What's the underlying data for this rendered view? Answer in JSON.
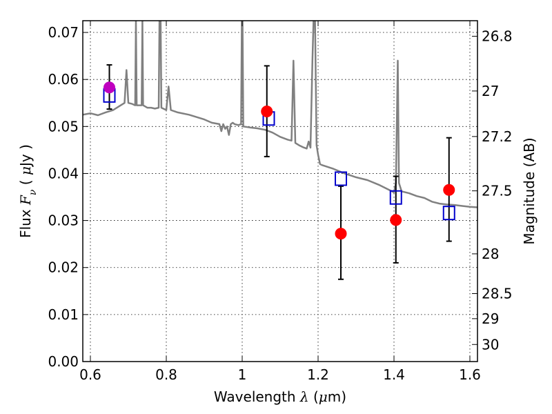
{
  "chart_data": {
    "type": "scatter",
    "xlabel": "Wavelength  λ (μm)",
    "ylabel": "Flux  F_ν  ( μJy )",
    "ylabel_right": "Magnitude (AB)",
    "xlim": [
      0.58,
      1.62
    ],
    "ylim": [
      0.0,
      0.0725
    ],
    "grid": true,
    "x_ticks": [
      0.6,
      0.8,
      1.0,
      1.2,
      1.4,
      1.6
    ],
    "x_tick_labels": [
      "0.6",
      "0.8",
      "1",
      "1.2",
      "1.4",
      "1.6"
    ],
    "y_ticks": [
      0.0,
      0.01,
      0.02,
      0.03,
      0.04,
      0.05,
      0.06,
      0.07
    ],
    "y_tick_labels": [
      "0.00",
      "0.01",
      "0.02",
      "0.03",
      "0.04",
      "0.05",
      "0.06",
      "0.07"
    ],
    "right_ticks": [
      {
        "label": "26.8",
        "mag": 26.8
      },
      {
        "label": "27",
        "mag": 27.0
      },
      {
        "label": "27.2",
        "mag": 27.2
      },
      {
        "label": "27.5",
        "mag": 27.5
      },
      {
        "label": "28",
        "mag": 28.0
      },
      {
        "label": "28.5",
        "mag": 28.5
      },
      {
        "label": "29",
        "mag": 29.0
      },
      {
        "label": "30",
        "mag": 30.0
      }
    ],
    "colors": {
      "observed": "#ff0000",
      "observed_first": "#bf00bf",
      "model": "#0000cc",
      "spectrum": "#808080",
      "errorbar": "#000000"
    },
    "series": [
      {
        "kind": "observed_flux",
        "x": [
          0.65,
          1.065,
          1.26,
          1.405,
          1.545
        ],
        "y": [
          0.0583,
          0.0532,
          0.0272,
          0.0301,
          0.0365
        ],
        "yerr_low": [
          0.0537,
          0.0436,
          0.0175,
          0.021,
          0.0256
        ],
        "yerr_high": [
          0.0631,
          0.0629,
          0.0373,
          0.0394,
          0.0476
        ]
      },
      {
        "kind": "model_photometry",
        "x": [
          0.65,
          1.07,
          1.26,
          1.405,
          1.545
        ],
        "y": [
          0.0566,
          0.0517,
          0.0389,
          0.0349,
          0.0316
        ]
      },
      {
        "kind": "model_spectrum",
        "points": [
          [
            0.58,
            0.0525
          ],
          [
            0.6,
            0.0528
          ],
          [
            0.62,
            0.0524
          ],
          [
            0.64,
            0.053
          ],
          [
            0.66,
            0.0535
          ],
          [
            0.68,
            0.0545
          ],
          [
            0.69,
            0.055
          ],
          [
            0.695,
            0.062
          ],
          [
            0.7,
            0.055
          ],
          [
            0.71,
            0.0548
          ],
          [
            0.718,
            0.0545
          ],
          [
            0.72,
            0.0725
          ],
          [
            0.722,
            0.0545
          ],
          [
            0.735,
            0.0545
          ],
          [
            0.737,
            0.0725
          ],
          [
            0.739,
            0.0545
          ],
          [
            0.75,
            0.054
          ],
          [
            0.76,
            0.054
          ],
          [
            0.77,
            0.0538
          ],
          [
            0.78,
            0.054
          ],
          [
            0.782,
            0.0725
          ],
          [
            0.785,
            0.0725
          ],
          [
            0.787,
            0.054
          ],
          [
            0.8,
            0.0535
          ],
          [
            0.806,
            0.0585
          ],
          [
            0.812,
            0.0535
          ],
          [
            0.83,
            0.053
          ],
          [
            0.86,
            0.0525
          ],
          [
            0.88,
            0.052
          ],
          [
            0.9,
            0.0515
          ],
          [
            0.92,
            0.0508
          ],
          [
            0.94,
            0.0505
          ],
          [
            0.945,
            0.049
          ],
          [
            0.95,
            0.0505
          ],
          [
            0.955,
            0.0495
          ],
          [
            0.96,
            0.05
          ],
          [
            0.965,
            0.0482
          ],
          [
            0.97,
            0.0505
          ],
          [
            0.975,
            0.0508
          ],
          [
            0.98,
            0.0505
          ],
          [
            0.99,
            0.0503
          ],
          [
            0.997,
            0.0505
          ],
          [
            0.999,
            0.0725
          ],
          [
            1.001,
            0.0725
          ],
          [
            1.003,
            0.05
          ],
          [
            1.02,
            0.0498
          ],
          [
            1.04,
            0.0496
          ],
          [
            1.06,
            0.0493
          ],
          [
            1.07,
            0.049
          ],
          [
            1.08,
            0.0487
          ],
          [
            1.1,
            0.0478
          ],
          [
            1.12,
            0.0472
          ],
          [
            1.13,
            0.047
          ],
          [
            1.135,
            0.064
          ],
          [
            1.14,
            0.0465
          ],
          [
            1.15,
            0.046
          ],
          [
            1.16,
            0.0456
          ],
          [
            1.17,
            0.0453
          ],
          [
            1.175,
            0.0468
          ],
          [
            1.18,
            0.0455
          ],
          [
            1.185,
            0.064
          ],
          [
            1.188,
            0.0725
          ],
          [
            1.192,
            0.0725
          ],
          [
            1.196,
            0.046
          ],
          [
            1.2,
            0.044
          ],
          [
            1.205,
            0.042
          ],
          [
            1.21,
            0.0418
          ],
          [
            1.24,
            0.041
          ],
          [
            1.27,
            0.04
          ],
          [
            1.3,
            0.0392
          ],
          [
            1.33,
            0.0386
          ],
          [
            1.36,
            0.0376
          ],
          [
            1.38,
            0.0368
          ],
          [
            1.4,
            0.036
          ],
          [
            1.405,
            0.038
          ],
          [
            1.41,
            0.064
          ],
          [
            1.413,
            0.038
          ],
          [
            1.42,
            0.0362
          ],
          [
            1.44,
            0.0358
          ],
          [
            1.46,
            0.0352
          ],
          [
            1.48,
            0.0348
          ],
          [
            1.5,
            0.034
          ],
          [
            1.52,
            0.0336
          ],
          [
            1.54,
            0.0334
          ],
          [
            1.56,
            0.0333
          ],
          [
            1.58,
            0.0331
          ],
          [
            1.6,
            0.0329
          ],
          [
            1.62,
            0.0328
          ]
        ]
      }
    ]
  }
}
